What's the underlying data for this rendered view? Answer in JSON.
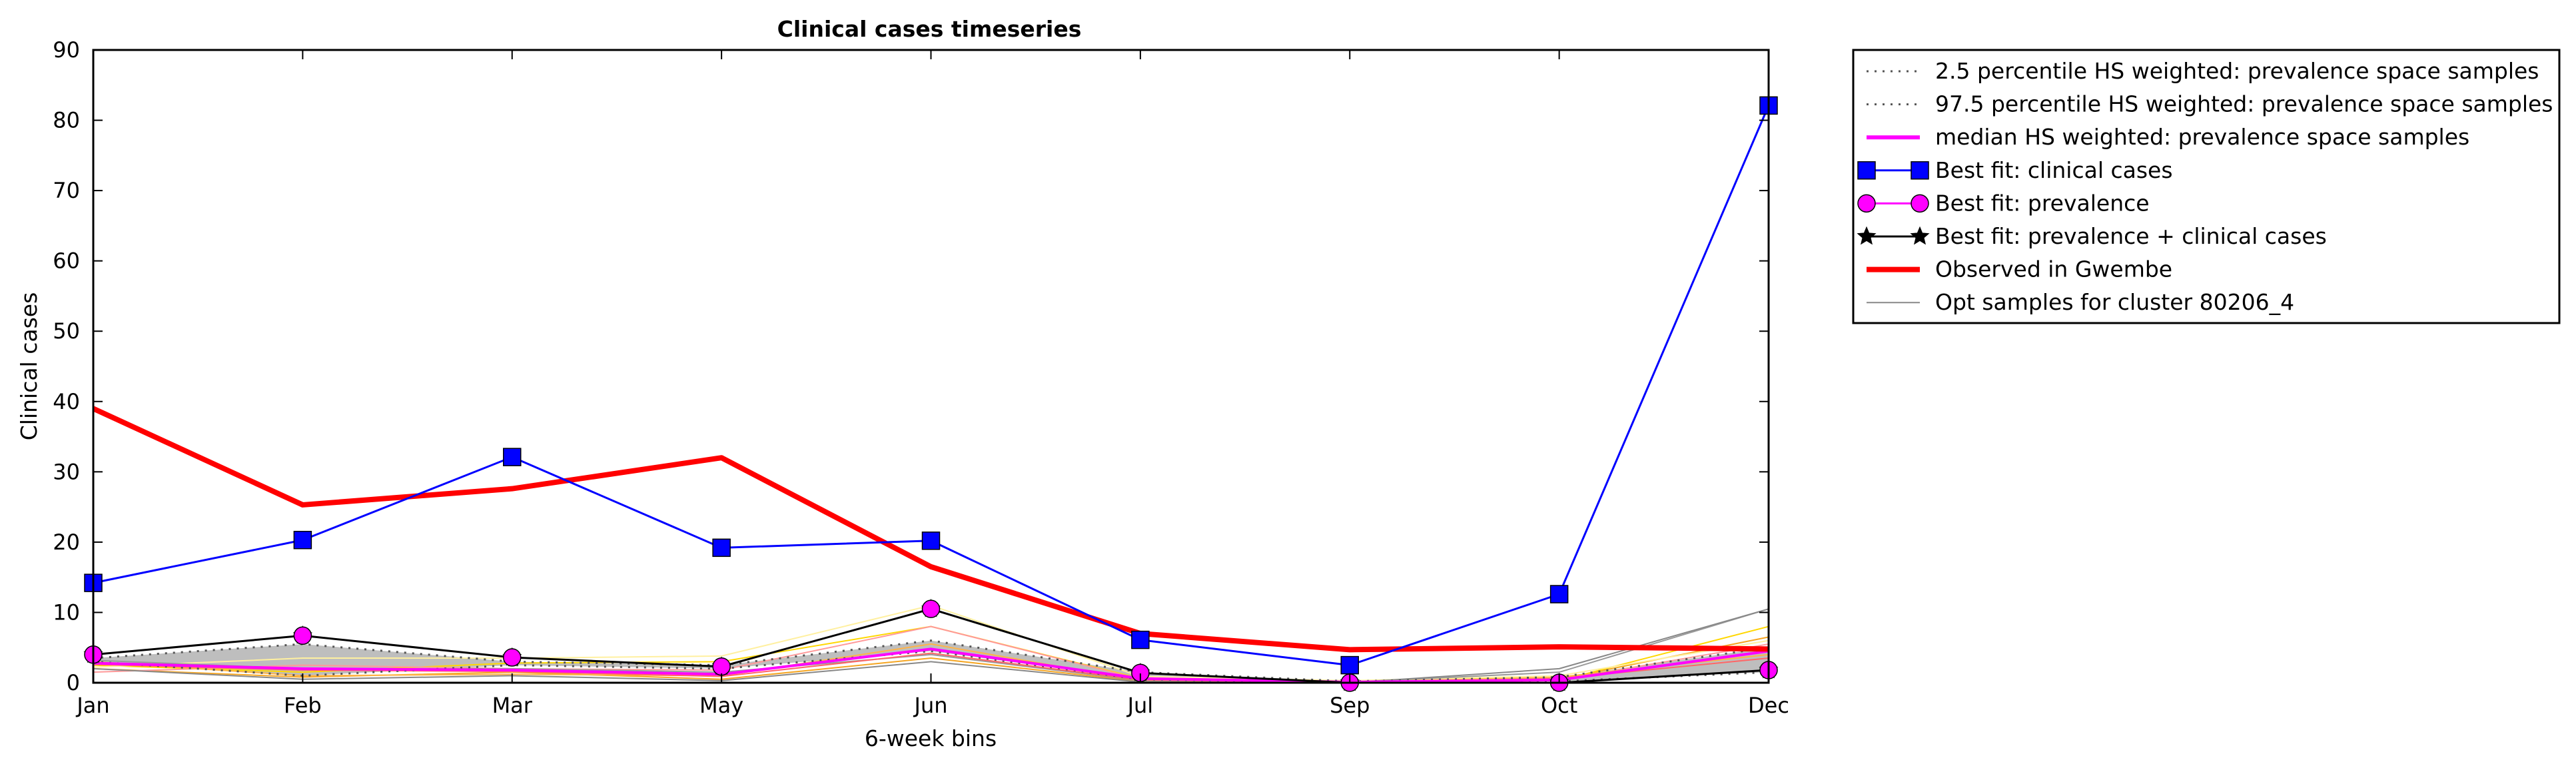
{
  "chart_data": {
    "type": "line",
    "title": "Clinical cases timeseries",
    "xlabel": "6-week bins",
    "ylabel": "Clinical cases",
    "categories": [
      "Jan",
      "Feb",
      "Mar",
      "May",
      "Jun",
      "Jul",
      "Sep",
      "Oct",
      "Dec"
    ],
    "yticks": [
      "0",
      "10",
      "20",
      "30",
      "40",
      "50",
      "60",
      "70",
      "80",
      "90"
    ],
    "ylim": [
      0,
      90
    ],
    "grid": false,
    "legend_position": "outside-top-right",
    "series": [
      {
        "name": "2.5 percentile HS weighted: prevalence space samples",
        "style": "dotted",
        "color": "#555555",
        "values": [
          3.0,
          1.0,
          2.5,
          2.0,
          4.5,
          0.5,
          0.0,
          0.2,
          1.5
        ]
      },
      {
        "name": "97.5 percentile HS weighted: prevalence space samples",
        "style": "dotted",
        "color": "#555555",
        "values": [
          3.5,
          5.5,
          3.0,
          2.5,
          6.0,
          1.5,
          0.2,
          0.8,
          5.0
        ]
      },
      {
        "name": "median HS weighted: prevalence space samples",
        "style": "solid",
        "color": "#ff00ff",
        "values": [
          2.8,
          2.0,
          1.8,
          1.2,
          4.8,
          0.6,
          0.1,
          0.4,
          4.5
        ]
      },
      {
        "name": "Best fit: clinical cases",
        "style": "line-square",
        "color": "#0000ff",
        "values": [
          14.2,
          20.3,
          32.1,
          19.2,
          20.2,
          6.1,
          2.5,
          12.6,
          82.1
        ]
      },
      {
        "name": "Best fit: prevalence",
        "style": "line-circle",
        "color": "#ff00ff",
        "values": [
          4.0,
          6.7,
          3.6,
          2.3,
          10.5,
          1.4,
          0.0,
          0.0,
          1.8
        ]
      },
      {
        "name": "Best fit: prevalence + clinical cases",
        "style": "line-star",
        "color": "#000000",
        "values": [
          4.0,
          6.7,
          3.6,
          2.3,
          10.5,
          1.4,
          0.0,
          0.0,
          1.8
        ]
      },
      {
        "name": "Observed in Gwembe",
        "style": "thick",
        "color": "#ff0000",
        "values": [
          39.0,
          25.3,
          27.6,
          32.0,
          16.5,
          7.0,
          4.7,
          5.1,
          4.8
        ]
      },
      {
        "name": "Opt samples for cluster 80206_4",
        "style": "thin",
        "color": "#888888",
        "values": [
          2.0,
          0.5,
          1.0,
          0.3,
          3.0,
          0.1,
          0.0,
          2.0,
          10.5
        ]
      }
    ],
    "sample_lines": [
      {
        "color": "#f5a623",
        "values": [
          2.0,
          0.8,
          1.5,
          0.5,
          3.5,
          0.2,
          0.0,
          0.5,
          6.5
        ]
      },
      {
        "color": "#ffd700",
        "values": [
          2.5,
          1.5,
          2.8,
          3.0,
          8.0,
          0.6,
          0.1,
          0.3,
          8.0
        ]
      },
      {
        "color": "#ff9999",
        "values": [
          1.5,
          2.5,
          2.0,
          1.8,
          8.0,
          0.5,
          0.0,
          0.4,
          5.5
        ]
      },
      {
        "color": "#ffb347",
        "values": [
          3.0,
          1.0,
          1.2,
          1.0,
          5.5,
          0.3,
          0.2,
          0.8,
          4.0
        ]
      },
      {
        "color": "#fff0a0",
        "values": [
          2.2,
          3.5,
          3.5,
          3.8,
          11.0,
          0.9,
          0.3,
          1.0,
          6.0
        ]
      },
      {
        "color": "#999999",
        "values": [
          3.2,
          2.0,
          2.0,
          1.5,
          4.0,
          0.3,
          0.1,
          1.5,
          10.5
        ]
      },
      {
        "color": "#ff6666",
        "values": [
          2.6,
          1.8,
          1.6,
          0.9,
          4.2,
          0.4,
          0.0,
          0.6,
          3.5
        ]
      }
    ],
    "band": {
      "color": "#b3b3b3",
      "lower": [
        3.0,
        1.0,
        2.5,
        2.0,
        4.5,
        0.5,
        0.0,
        0.2,
        1.5
      ],
      "upper": [
        3.5,
        5.5,
        3.0,
        2.5,
        6.0,
        1.5,
        0.2,
        0.8,
        5.0
      ]
    }
  }
}
